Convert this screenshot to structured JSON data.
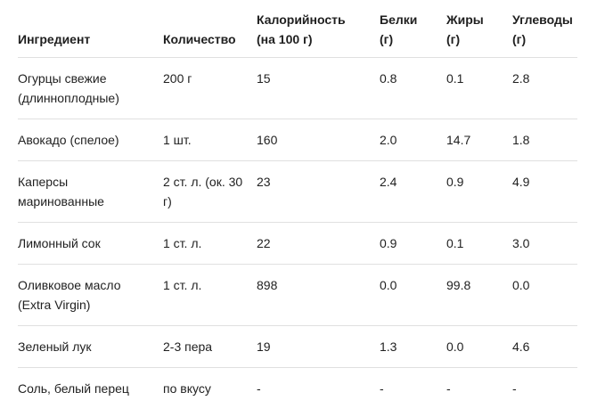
{
  "table": {
    "headers": [
      "Ингредиент",
      "Количество",
      "Калорийность (на 100 г)",
      "Белки (г)",
      "Жиры (г)",
      "Углеводы (г)"
    ],
    "rows": [
      [
        "Огурцы свежие (длинноплодные)",
        "200 г",
        "15",
        "0.8",
        "0.1",
        "2.8"
      ],
      [
        "Авокадо (спелое)",
        "1 шт.",
        "160",
        "2.0",
        "14.7",
        "1.8"
      ],
      [
        "Каперсы маринованные",
        "2 ст. л. (ок. 30 г)",
        "23",
        "2.4",
        "0.9",
        "4.9"
      ],
      [
        "Лимонный сок",
        "1 ст. л.",
        "22",
        "0.9",
        "0.1",
        "3.0"
      ],
      [
        "Оливковое масло (Extra Virgin)",
        "1 ст. л.",
        "898",
        "0.0",
        "99.8",
        "0.0"
      ],
      [
        "Зеленый лук",
        "2-3 пера",
        "19",
        "1.3",
        "0.0",
        "4.6"
      ],
      [
        "Соль, белый перец",
        "по вкусу",
        "-",
        "-",
        "-",
        "-"
      ]
    ]
  }
}
